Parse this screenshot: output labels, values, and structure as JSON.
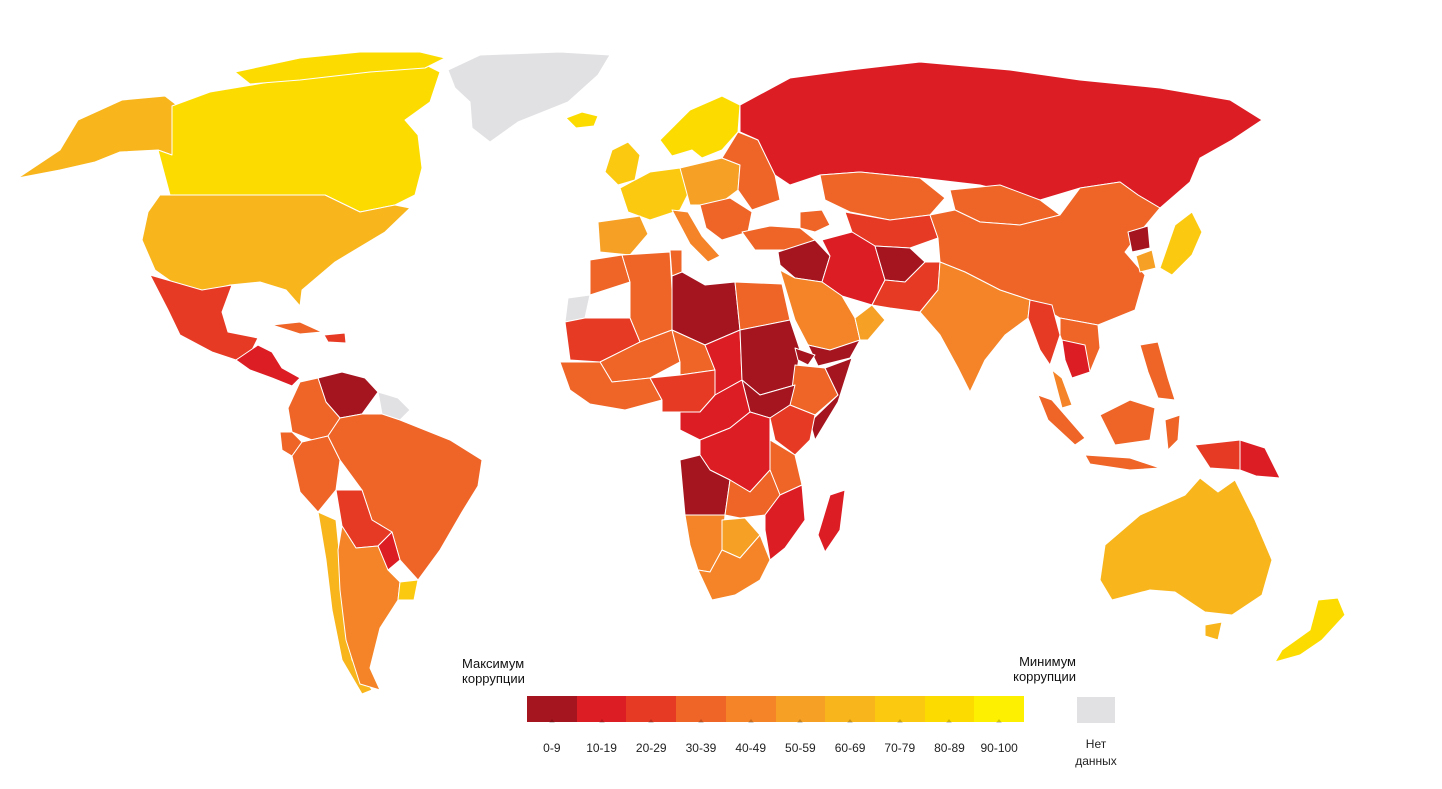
{
  "map": {
    "colors": {
      "0-9": "#a5151f",
      "10-19": "#dd1d24",
      "20-29": "#e73a25",
      "30-39": "#ef6427",
      "40-49": "#f48427",
      "50-59": "#f6a125",
      "60-69": "#f8b51c",
      "70-79": "#fbca10",
      "80-89": "#fcdc00",
      "90-100": "#fdf000",
      "no_data": "#e1e1e3"
    },
    "regions": [
      {
        "id": "alaska",
        "bin": "60-69"
      },
      {
        "id": "canada",
        "bin": "80-89"
      },
      {
        "id": "canada-islands",
        "bin": "80-89"
      },
      {
        "id": "greenland",
        "bin": "no_data"
      },
      {
        "id": "iceland",
        "bin": "80-89"
      },
      {
        "id": "usa",
        "bin": "60-69"
      },
      {
        "id": "mexico",
        "bin": "20-29"
      },
      {
        "id": "central-america",
        "bin": "10-19"
      },
      {
        "id": "cuba",
        "bin": "30-39"
      },
      {
        "id": "hispaniola",
        "bin": "20-29"
      },
      {
        "id": "venezuela",
        "bin": "0-9"
      },
      {
        "id": "colombia",
        "bin": "30-39"
      },
      {
        "id": "guianas",
        "bin": "no_data"
      },
      {
        "id": "ecuador",
        "bin": "30-39"
      },
      {
        "id": "peru",
        "bin": "30-39"
      },
      {
        "id": "brazil",
        "bin": "30-39"
      },
      {
        "id": "bolivia",
        "bin": "20-29"
      },
      {
        "id": "paraguay",
        "bin": "10-19"
      },
      {
        "id": "chile",
        "bin": "60-69"
      },
      {
        "id": "argentina",
        "bin": "40-49"
      },
      {
        "id": "uruguay",
        "bin": "70-79"
      },
      {
        "id": "scandinavia",
        "bin": "80-89"
      },
      {
        "id": "uk-ireland",
        "bin": "70-79"
      },
      {
        "id": "western-europe",
        "bin": "70-79"
      },
      {
        "id": "central-europe",
        "bin": "50-59"
      },
      {
        "id": "iberia",
        "bin": "50-59"
      },
      {
        "id": "italy",
        "bin": "40-49"
      },
      {
        "id": "balkans",
        "bin": "30-39"
      },
      {
        "id": "eastern-europe",
        "bin": "30-39"
      },
      {
        "id": "russia",
        "bin": "10-19"
      },
      {
        "id": "turkey",
        "bin": "30-39"
      },
      {
        "id": "kazakhstan",
        "bin": "30-39"
      },
      {
        "id": "central-asia",
        "bin": "20-29"
      },
      {
        "id": "caucasus",
        "bin": "30-39"
      },
      {
        "id": "mongolia",
        "bin": "30-39"
      },
      {
        "id": "china",
        "bin": "30-39"
      },
      {
        "id": "north-korea",
        "bin": "0-9"
      },
      {
        "id": "south-korea",
        "bin": "50-59"
      },
      {
        "id": "japan",
        "bin": "70-79"
      },
      {
        "id": "iran",
        "bin": "10-19"
      },
      {
        "id": "iraq-syria",
        "bin": "0-9"
      },
      {
        "id": "afghanistan",
        "bin": "0-9"
      },
      {
        "id": "pakistan",
        "bin": "20-29"
      },
      {
        "id": "india",
        "bin": "40-49"
      },
      {
        "id": "arabia",
        "bin": "40-49"
      },
      {
        "id": "yemen",
        "bin": "0-9"
      },
      {
        "id": "oman",
        "bin": "50-59"
      },
      {
        "id": "myanmar",
        "bin": "20-29"
      },
      {
        "id": "se-asia-mainland",
        "bin": "30-39"
      },
      {
        "id": "cambodia-laos",
        "bin": "10-19"
      },
      {
        "id": "malay-peninsula",
        "bin": "40-49"
      },
      {
        "id": "sumatra",
        "bin": "30-39"
      },
      {
        "id": "java",
        "bin": "30-39"
      },
      {
        "id": "borneo",
        "bin": "30-39"
      },
      {
        "id": "sulawesi",
        "bin": "30-39"
      },
      {
        "id": "philippines",
        "bin": "30-39"
      },
      {
        "id": "new-guinea",
        "bin": "20-29"
      },
      {
        "id": "papua-new-guinea",
        "bin": "10-19"
      },
      {
        "id": "australia",
        "bin": "60-69"
      },
      {
        "id": "new-zealand",
        "bin": "80-89"
      },
      {
        "id": "western-sahara",
        "bin": "no_data"
      },
      {
        "id": "morocco",
        "bin": "30-39"
      },
      {
        "id": "algeria",
        "bin": "30-39"
      },
      {
        "id": "tunisia",
        "bin": "30-39"
      },
      {
        "id": "libya",
        "bin": "0-9"
      },
      {
        "id": "egypt",
        "bin": "30-39"
      },
      {
        "id": "mauritania",
        "bin": "20-29"
      },
      {
        "id": "mali",
        "bin": "30-39"
      },
      {
        "id": "niger",
        "bin": "30-39"
      },
      {
        "id": "chad",
        "bin": "10-19"
      },
      {
        "id": "sudan",
        "bin": "0-9"
      },
      {
        "id": "ethiopia",
        "bin": "30-39"
      },
      {
        "id": "eritrea",
        "bin": "0-9"
      },
      {
        "id": "somalia",
        "bin": "0-9"
      },
      {
        "id": "west-africa",
        "bin": "30-39"
      },
      {
        "id": "nigeria",
        "bin": "20-29"
      },
      {
        "id": "south-sudan",
        "bin": "0-9"
      },
      {
        "id": "central-africa",
        "bin": "10-19"
      },
      {
        "id": "drc",
        "bin": "10-19"
      },
      {
        "id": "kenya",
        "bin": "20-29"
      },
      {
        "id": "tanzania",
        "bin": "30-39"
      },
      {
        "id": "angola",
        "bin": "0-9"
      },
      {
        "id": "zambia",
        "bin": "30-39"
      },
      {
        "id": "mozambique",
        "bin": "10-19"
      },
      {
        "id": "namibia",
        "bin": "40-49"
      },
      {
        "id": "botswana",
        "bin": "50-59"
      },
      {
        "id": "south-africa",
        "bin": "40-49"
      },
      {
        "id": "madagascar",
        "bin": "10-19"
      }
    ]
  },
  "legend": {
    "left_label": "Максимум коррупции",
    "right_label": "Минимум коррупции",
    "no_data_label": "Нет данных",
    "no_data_color": "#e1e1e3",
    "bins": [
      {
        "label": "0-9",
        "color": "#a5151f"
      },
      {
        "label": "10-19",
        "color": "#dd1d24"
      },
      {
        "label": "20-29",
        "color": "#e73a25"
      },
      {
        "label": "30-39",
        "color": "#ef6427"
      },
      {
        "label": "40-49",
        "color": "#f48427"
      },
      {
        "label": "50-59",
        "color": "#f6a125"
      },
      {
        "label": "60-69",
        "color": "#f8b51c"
      },
      {
        "label": "70-79",
        "color": "#fbca10"
      },
      {
        "label": "80-89",
        "color": "#fcdc00"
      },
      {
        "label": "90-100",
        "color": "#fdf000"
      }
    ]
  }
}
